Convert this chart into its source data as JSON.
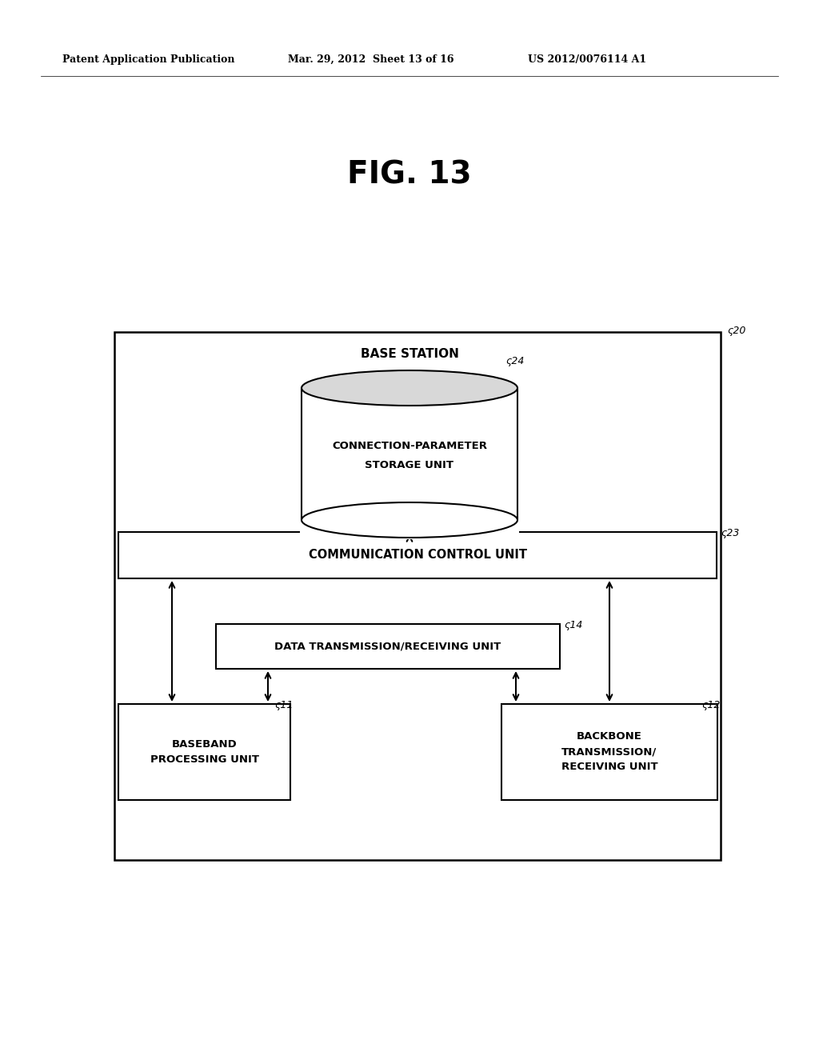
{
  "bg_color": "#ffffff",
  "header_left": "Patent Application Publication",
  "header_mid": "Mar. 29, 2012  Sheet 13 of 16",
  "header_right": "US 2012/0076114 A1",
  "fig_title": "FIG. 13",
  "base_station_label": "BASE STATION",
  "db_label": "24",
  "db_text_line1": "CONNECTION-PARAMETER",
  "db_text_line2": "STORAGE UNIT",
  "ccu_label": "23",
  "ccu_text": "COMMUNICATION CONTROL UNIT",
  "data_label": "14",
  "data_text": "DATA TRANSMISSION/RECEIVING UNIT",
  "bb_label": "11",
  "bb_text": "BASEBAND\nPROCESSING UNIT",
  "backbone_label": "12",
  "backbone_text": "BACKBONE\nTRANSMISSION/\nRECEIVING UNIT",
  "outer_box_label": "20"
}
